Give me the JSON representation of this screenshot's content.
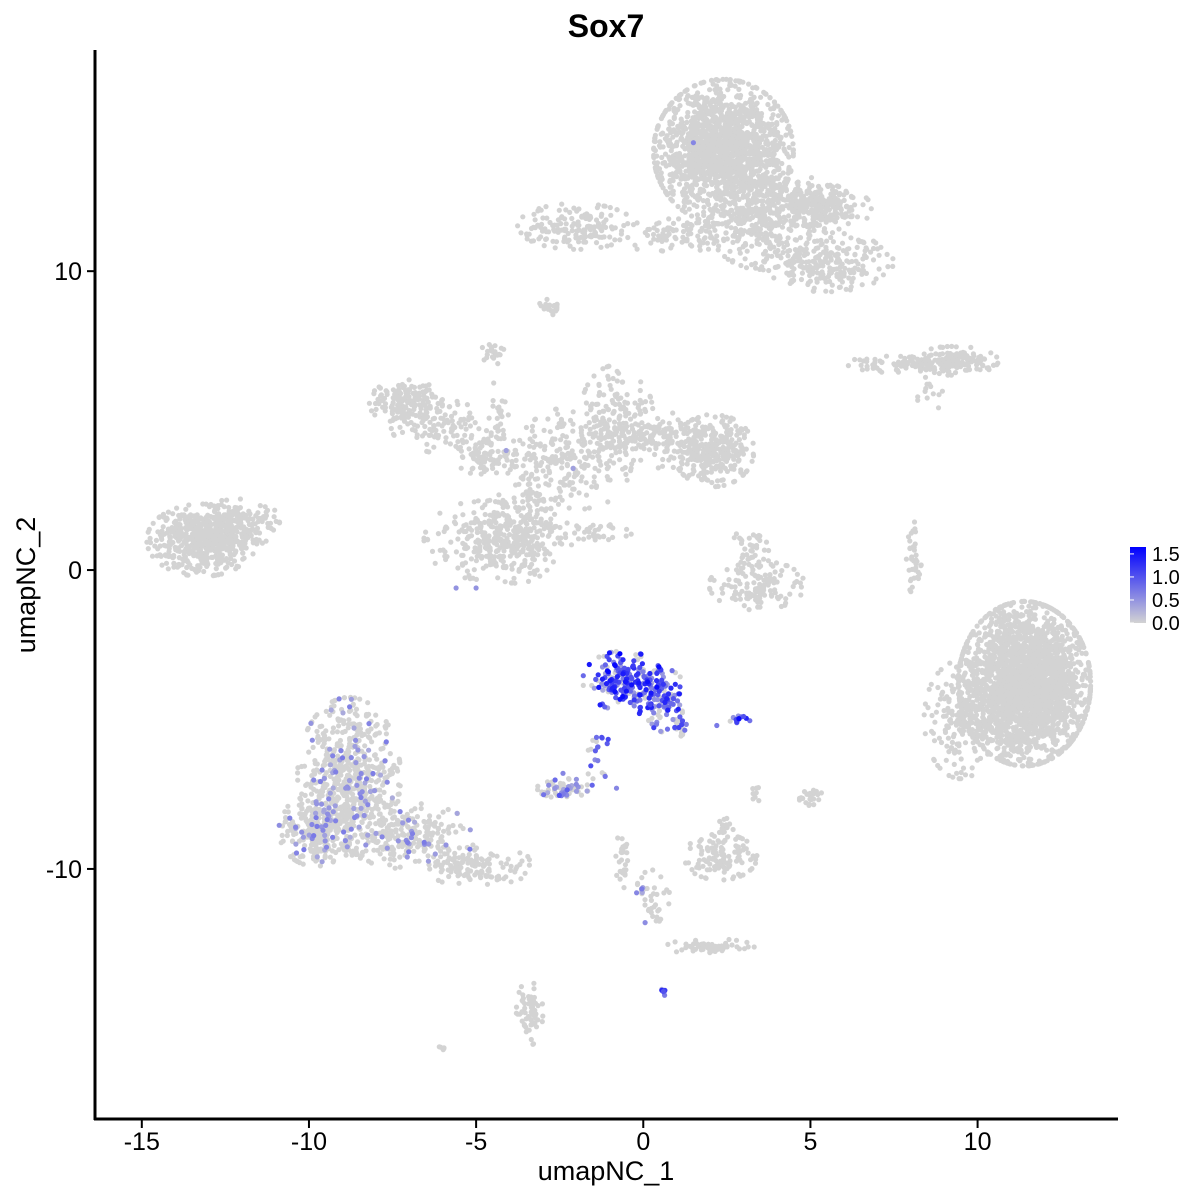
{
  "chart_data": {
    "type": "scatter",
    "title": "Sox7",
    "xlabel": "umapNC_1",
    "ylabel": "umapNC_2",
    "xlim": [
      -16.4,
      14.2
    ],
    "ylim": [
      -18.4,
      17.4
    ],
    "x_ticks": [
      -15,
      -10,
      -5,
      0,
      5,
      10
    ],
    "x_tick_labels": [
      "-15",
      "-10",
      "-5",
      "0",
      "5",
      "10"
    ],
    "y_ticks": [
      -10,
      0,
      10
    ],
    "y_tick_labels": [
      "-10",
      "0",
      "10"
    ],
    "grid": false,
    "legend": {
      "placement": "right",
      "type": "colorbar",
      "labels": [
        "1.5",
        "1.0",
        "0.5",
        "0.0"
      ],
      "values": [
        1.5,
        1.0,
        0.5,
        0.0
      ],
      "range": [
        0.0,
        1.65
      ],
      "low_color": "#d3d3d3",
      "high_color": "#0000ff"
    },
    "clusters": [
      {
        "cx": 2.4,
        "cy": 14.0,
        "sx": 0.95,
        "sy": 1.1,
        "n": 1700,
        "expr": 0
      },
      {
        "cx": 3.5,
        "cy": 11.6,
        "sx": 0.7,
        "sy": 0.7,
        "n": 260,
        "expr": 0
      },
      {
        "cx": 4.6,
        "cy": 12.3,
        "sx": 0.6,
        "sy": 0.4,
        "n": 160,
        "expr": 0
      },
      {
        "cx": 5.5,
        "cy": 12.1,
        "sx": 0.6,
        "sy": 0.35,
        "n": 160,
        "expr": 0
      },
      {
        "cx": 5.5,
        "cy": 10.3,
        "sx": 0.9,
        "sy": 0.45,
        "n": 240,
        "expr": 0
      },
      {
        "cx": 0.9,
        "cy": 11.2,
        "sx": 0.9,
        "sy": 0.25,
        "n": 100,
        "expr": 0
      },
      {
        "cx": -2.0,
        "cy": 11.5,
        "sx": 0.8,
        "sy": 0.35,
        "n": 160,
        "expr": 0
      },
      {
        "cx": -2.8,
        "cy": 8.8,
        "sx": 0.15,
        "sy": 0.12,
        "n": 22,
        "expr": 0
      },
      {
        "cx": -4.5,
        "cy": 7.3,
        "sx": 0.15,
        "sy": 0.2,
        "n": 22,
        "expr": 0
      },
      {
        "cx": 8.3,
        "cy": 6.9,
        "sx": 1.0,
        "sy": 0.15,
        "n": 120,
        "expr": 0
      },
      {
        "cx": 9.3,
        "cy": 7.0,
        "sx": 0.6,
        "sy": 0.22,
        "n": 110,
        "expr": 0
      },
      {
        "cx": 8.5,
        "cy": 6.0,
        "sx": 0.3,
        "sy": 0.3,
        "n": 14,
        "expr": 0
      },
      {
        "cx": -7.1,
        "cy": 5.6,
        "sx": 0.5,
        "sy": 0.35,
        "n": 140,
        "expr": 0
      },
      {
        "cx": -6.0,
        "cy": 4.8,
        "sx": 0.7,
        "sy": 0.4,
        "n": 110,
        "expr": 0
      },
      {
        "cx": -4.6,
        "cy": 3.9,
        "sx": 0.5,
        "sy": 0.35,
        "n": 90,
        "expr": 0
      },
      {
        "cx": -4.3,
        "cy": 5.1,
        "sx": 0.12,
        "sy": 0.7,
        "n": 24,
        "expr": 0
      },
      {
        "cx": -3.4,
        "cy": 2.3,
        "sx": 0.3,
        "sy": 1.0,
        "n": 110,
        "expr": 0
      },
      {
        "cx": -2.1,
        "cy": 3.7,
        "sx": 0.8,
        "sy": 0.8,
        "n": 200,
        "expr": 0
      },
      {
        "cx": -0.8,
        "cy": 5.1,
        "sx": 0.5,
        "sy": 0.8,
        "n": 180,
        "expr": 0
      },
      {
        "cx": 0.6,
        "cy": 4.4,
        "sx": 0.6,
        "sy": 0.45,
        "n": 130,
        "expr": 0
      },
      {
        "cx": 2.1,
        "cy": 4.0,
        "sx": 0.55,
        "sy": 0.55,
        "n": 300,
        "expr": 0
      },
      {
        "cx": -4.8,
        "cy": 1.0,
        "sx": 0.8,
        "sy": 0.6,
        "n": 180,
        "expr": 0
      },
      {
        "cx": -3.8,
        "cy": 1.1,
        "sx": 0.6,
        "sy": 0.7,
        "n": 180,
        "expr": 0
      },
      {
        "cx": -1.9,
        "cy": 1.2,
        "sx": 0.7,
        "sy": 0.18,
        "n": 45,
        "expr": 0
      },
      {
        "cx": -13.2,
        "cy": 1.0,
        "sx": 0.75,
        "sy": 0.55,
        "n": 500,
        "expr": 0
      },
      {
        "cx": -12.2,
        "cy": 1.6,
        "sx": 0.6,
        "sy": 0.4,
        "n": 160,
        "expr": 0
      },
      {
        "cx": 3.4,
        "cy": -0.5,
        "sx": 0.65,
        "sy": 0.38,
        "n": 130,
        "expr": 0
      },
      {
        "cx": 3.2,
        "cy": 0.7,
        "sx": 0.25,
        "sy": 0.35,
        "n": 40,
        "expr": 0
      },
      {
        "cx": 8.1,
        "cy": 0.4,
        "sx": 0.12,
        "sy": 0.55,
        "n": 40,
        "expr": 0
      },
      {
        "cx": 11.4,
        "cy": -3.8,
        "sx": 0.9,
        "sy": 1.25,
        "n": 2400,
        "expr": 0
      },
      {
        "cx": 9.5,
        "cy": -5.0,
        "sx": 0.5,
        "sy": 0.9,
        "n": 200,
        "expr": 0
      },
      {
        "cx": -0.6,
        "cy": -3.7,
        "sx": 0.55,
        "sy": 0.45,
        "n": 220,
        "expr": 0.7
      },
      {
        "cx": 0.6,
        "cy": -4.4,
        "sx": 0.35,
        "sy": 0.5,
        "n": 110,
        "expr": 0.6
      },
      {
        "cx": 1.1,
        "cy": -5.2,
        "sx": 0.1,
        "sy": 0.25,
        "n": 20,
        "expr": 0.45
      },
      {
        "cx": -1.3,
        "cy": -6.3,
        "sx": 0.18,
        "sy": 0.5,
        "n": 20,
        "expr": 0.5
      },
      {
        "cx": 2.9,
        "cy": -5.0,
        "sx": 0.15,
        "sy": 0.06,
        "n": 12,
        "expr": 0.7
      },
      {
        "cx": -2.4,
        "cy": -7.3,
        "sx": 0.35,
        "sy": 0.15,
        "n": 60,
        "expr": 0.25
      },
      {
        "cx": -8.8,
        "cy": -6.9,
        "sx": 0.7,
        "sy": 1.2,
        "n": 600,
        "expr": 0.01
      },
      {
        "cx": -9.8,
        "cy": -8.7,
        "sx": 0.5,
        "sy": 0.55,
        "n": 250,
        "expr": 0.01
      },
      {
        "cx": -7.0,
        "cy": -8.9,
        "sx": 0.9,
        "sy": 0.5,
        "n": 260,
        "expr": 0.01
      },
      {
        "cx": -5.0,
        "cy": -9.9,
        "sx": 0.8,
        "sy": 0.3,
        "n": 130,
        "expr": 0
      },
      {
        "cx": 2.3,
        "cy": -9.6,
        "sx": 0.5,
        "sy": 0.35,
        "n": 120,
        "expr": 0
      },
      {
        "cx": 2.5,
        "cy": -8.6,
        "sx": 0.12,
        "sy": 0.15,
        "n": 15,
        "expr": 0
      },
      {
        "cx": 5.0,
        "cy": -7.6,
        "sx": 0.2,
        "sy": 0.15,
        "n": 25,
        "expr": 0
      },
      {
        "cx": 3.3,
        "cy": -7.5,
        "sx": 0.12,
        "sy": 0.12,
        "n": 8,
        "expr": 0
      },
      {
        "cx": -0.6,
        "cy": -9.7,
        "sx": 0.1,
        "sy": 0.5,
        "n": 30,
        "expr": 0
      },
      {
        "cx": 0.3,
        "cy": -11.0,
        "sx": 0.25,
        "sy": 0.45,
        "n": 40,
        "expr": 0.04
      },
      {
        "cx": 2.0,
        "cy": -12.6,
        "sx": 0.6,
        "sy": 0.12,
        "n": 60,
        "expr": 0
      },
      {
        "cx": -3.4,
        "cy": -14.8,
        "sx": 0.18,
        "sy": 0.5,
        "n": 60,
        "expr": 0
      },
      {
        "cx": 0.6,
        "cy": -14.1,
        "sx": 0.06,
        "sy": 0.06,
        "n": 6,
        "expr": 0.8
      },
      {
        "cx": -6.0,
        "cy": -16.0,
        "sx": 0.06,
        "sy": 0.06,
        "n": 6,
        "expr": 0
      }
    ],
    "highlighted_points": [
      {
        "x": 1.5,
        "y": 14.3,
        "value": 0.6
      },
      {
        "x": -4.1,
        "y": 4.0,
        "value": 0.4
      },
      {
        "x": -2.1,
        "y": 3.4,
        "value": 0.4
      },
      {
        "x": -5.6,
        "y": -0.6,
        "value": 0.5
      },
      {
        "x": -5.0,
        "y": -0.6,
        "value": 0.5
      },
      {
        "x": -8.9,
        "y": -7.3,
        "value": 0.5
      },
      {
        "x": -10.4,
        "y": -8.6,
        "value": 0.6
      },
      {
        "x": -8.3,
        "y": -9.2,
        "value": 0.5
      },
      {
        "x": -8.5,
        "y": -8.6,
        "value": 0.4
      },
      {
        "x": -5.9,
        "y": -9.2,
        "value": 0.5
      },
      {
        "x": -0.7,
        "y": -2.8,
        "value": 1.65
      },
      {
        "x": -1.1,
        "y": -3.8,
        "value": 1.4
      },
      {
        "x": 0.4,
        "y": -3.7,
        "value": 1.3
      },
      {
        "x": -0.3,
        "y": -3.2,
        "value": 1.2
      },
      {
        "x": 0.2,
        "y": -4.5,
        "value": 1.1
      },
      {
        "x": 0.9,
        "y": -4.3,
        "value": 1.0
      },
      {
        "x": -2.4,
        "y": -6.8,
        "value": 0.6
      },
      {
        "x": -2.0,
        "y": -7.0,
        "value": 0.5
      },
      {
        "x": -0.8,
        "y": -7.3,
        "value": 0.6
      },
      {
        "x": 2.2,
        "y": -5.2,
        "value": 0.7
      },
      {
        "x": 3.0,
        "y": -4.9,
        "value": 1.0
      },
      {
        "x": -1.4,
        "y": -5.6,
        "value": 0.8
      },
      {
        "x": 0.6,
        "y": -14.1,
        "value": 1.0
      },
      {
        "x": -0.2,
        "y": -10.8,
        "value": 0.6
      }
    ]
  }
}
